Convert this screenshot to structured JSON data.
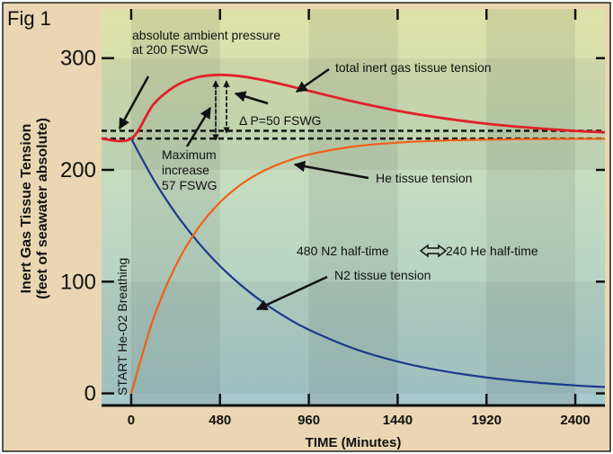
{
  "chart_data": {
    "type": "line",
    "figure_label": "Fig 1",
    "xlabel": "TIME (Minutes)",
    "ylabel_line1": "Inert Gas Tissue Tension",
    "ylabel_line2": "(feet of seawater absolute)",
    "xlim": [
      -160,
      2560
    ],
    "ylim": [
      -10,
      344
    ],
    "xticks": [
      0,
      480,
      960,
      1440,
      1920,
      2400
    ],
    "xtick_labels": [
      "0",
      "480",
      "960",
      "1440",
      "1920",
      "2400"
    ],
    "yticks": [
      0,
      100,
      200,
      300
    ],
    "ytick_labels": [
      "0",
      "100",
      "200",
      "300"
    ],
    "x": [
      -160,
      0,
      120,
      240,
      360,
      480,
      600,
      720,
      840,
      960,
      1200,
      1440,
      1680,
      1920,
      2160,
      2400,
      2560
    ],
    "series": [
      {
        "name": "total inert gas tissue tension",
        "color": "#e0202a",
        "values": [
          228,
          228,
          258.5,
          275.2,
          283,
          285,
          283.6,
          280.1,
          275.6,
          270.75,
          261.2,
          252.9,
          246.4,
          241.35,
          237.7,
          234.9,
          233.6
        ]
      },
      {
        "name": "He tissue tension",
        "color": "#f06018",
        "values": [
          null,
          0,
          66.8,
          114,
          147.4,
          171,
          187.7,
          199.5,
          207.8,
          213.75,
          220.9,
          224.4,
          226.2,
          227.1,
          227.6,
          227.8,
          227.9
        ]
      },
      {
        "name": "N2 tissue tension",
        "color": "#1a3a8a",
        "values": [
          null,
          228,
          191.7,
          161.2,
          135.6,
          114,
          95.9,
          80.6,
          67.8,
          57,
          40.3,
          28.5,
          20.2,
          14.25,
          10.1,
          7.1,
          5.7
        ]
      }
    ],
    "reference_lines": [
      {
        "name": "ambient pressure",
        "y": 235
      },
      {
        "name": "initial tension",
        "y": 228
      }
    ],
    "annotations": {
      "ambient_line1": "absolute ambient pressure",
      "ambient_line2": "at 200 FSWG",
      "total": "total inert gas tissue tension",
      "delta_p": "Δ P=50 FSWG",
      "max_line1": "Maximum",
      "max_line2": "increase",
      "max_line3": "57 FSWG",
      "he": "He tissue tension",
      "halftime_left": "480 N2 half-time",
      "halftime_right": "240 He half-time",
      "n2": "N2 tissue tension",
      "start": "START He-O2 Breathing"
    },
    "grid": false,
    "legend": "none"
  }
}
